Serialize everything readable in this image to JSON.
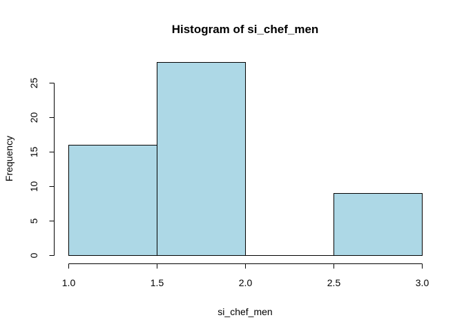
{
  "chart_data": {
    "type": "histogram",
    "title": "Histogram of si_chef_men",
    "xlabel": "si_chef_men",
    "ylabel": "Frequency",
    "bins": [
      {
        "start": 1.0,
        "end": 1.5,
        "count": 16
      },
      {
        "start": 1.5,
        "end": 2.0,
        "count": 28
      },
      {
        "start": 2.0,
        "end": 2.5,
        "count": 0
      },
      {
        "start": 2.5,
        "end": 3.0,
        "count": 9
      }
    ],
    "xlim": [
      1.0,
      3.0
    ],
    "ylim": [
      0,
      28
    ],
    "x_ticks": [
      1.0,
      1.5,
      2.0,
      2.5,
      3.0
    ],
    "x_tick_labels": [
      "1.0",
      "1.5",
      "2.0",
      "2.5",
      "3.0"
    ],
    "y_ticks": [
      0,
      5,
      10,
      15,
      20,
      25
    ],
    "y_tick_labels": [
      "0",
      "5",
      "10",
      "15",
      "20",
      "25"
    ],
    "bar_color": "#add8e6",
    "grid": false,
    "legend": "none"
  }
}
